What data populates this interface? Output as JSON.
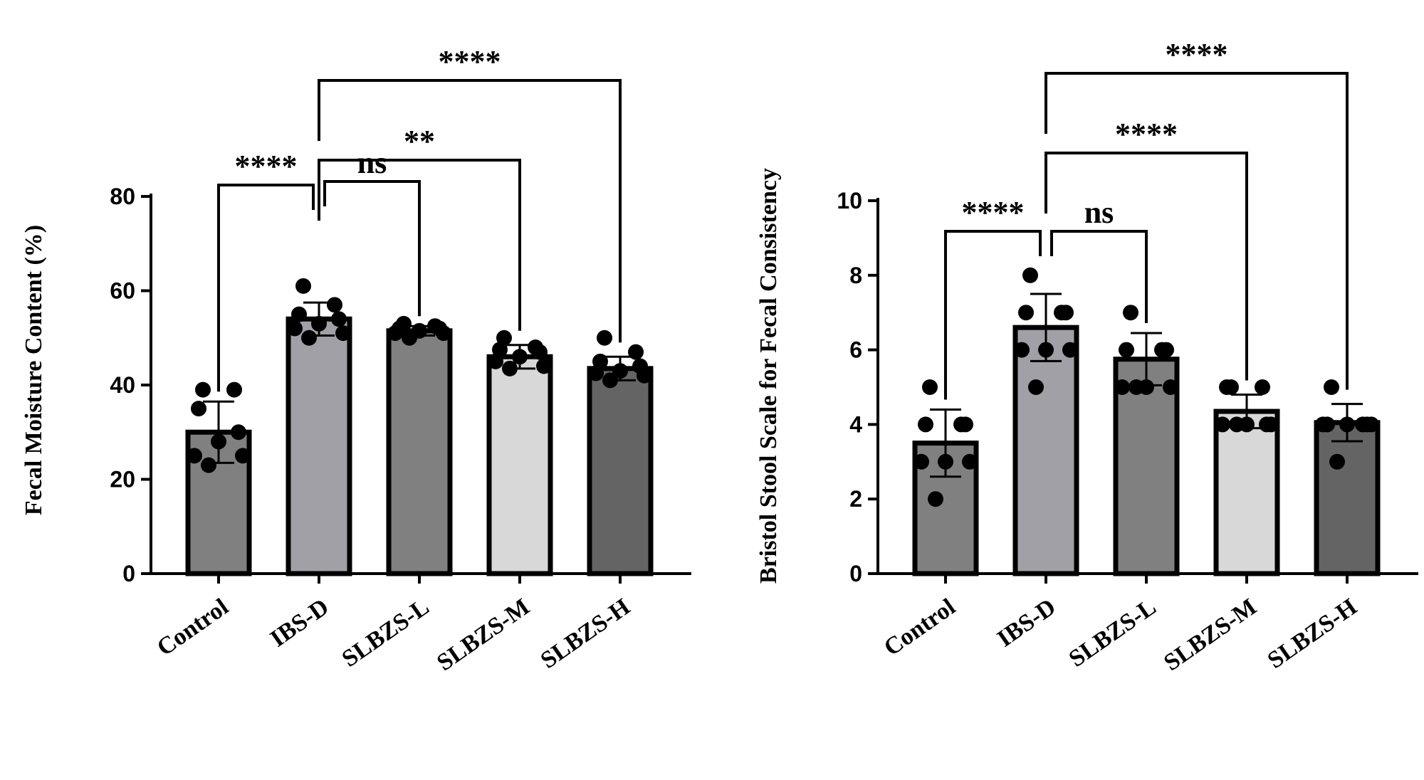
{
  "chart_data": [
    {
      "type": "bar",
      "ylabel": "Fecal Moisture Content (%)",
      "categories": [
        "Control",
        "IBS-D",
        "SLBZS-L",
        "SLBZS-M",
        "SLBZS-H"
      ],
      "values": [
        30,
        54,
        51.5,
        46,
        43.5
      ],
      "errors": [
        6.5,
        3.5,
        1,
        2.5,
        2.5
      ],
      "ylim": [
        0,
        80
      ],
      "yticks": [
        0,
        20,
        40,
        60,
        80
      ],
      "bar_colors": [
        "#808080",
        "#a0a0a6",
        "#808080",
        "#d8d8d8",
        "#646464"
      ],
      "points": [
        [
          39,
          39,
          35,
          30,
          28,
          25,
          25,
          23
        ],
        [
          61,
          57,
          55,
          54,
          53,
          52,
          51,
          50
        ],
        [
          53,
          52.5,
          52,
          52,
          51.5,
          51,
          51,
          50
        ],
        [
          50,
          48,
          47.5,
          47,
          46,
          45,
          44,
          43.5
        ],
        [
          50,
          47,
          45,
          44,
          43,
          42.5,
          42,
          41
        ]
      ],
      "comparisons": [
        {
          "from": 1,
          "to": 0,
          "label": "****"
        },
        {
          "from": 1,
          "to": 2,
          "label": "ns"
        },
        {
          "from": 1,
          "to": 3,
          "label": "**"
        },
        {
          "from": 1,
          "to": 4,
          "label": "****"
        }
      ]
    },
    {
      "type": "bar",
      "ylabel": "Bristol Stool Scale for Fecal Consistency",
      "categories": [
        "Control",
        "IBS-D",
        "SLBZS-L",
        "SLBZS-M",
        "SLBZS-H"
      ],
      "values": [
        3.5,
        6.6,
        5.75,
        4.35,
        4.05
      ],
      "errors": [
        0.9,
        0.9,
        0.7,
        0.45,
        0.5
      ],
      "ylim": [
        0,
        10
      ],
      "yticks": [
        0,
        2,
        4,
        6,
        8,
        10
      ],
      "bar_colors": [
        "#808080",
        "#a0a0a6",
        "#808080",
        "#d8d8d8",
        "#646464"
      ],
      "points": [
        [
          5,
          4,
          4,
          4,
          3,
          3,
          3,
          2
        ],
        [
          8,
          7,
          7,
          7,
          6,
          6,
          6,
          5
        ],
        [
          7,
          6,
          6,
          6,
          5,
          5,
          5,
          5
        ],
        [
          5,
          5,
          5,
          4,
          4,
          4,
          4,
          4
        ],
        [
          5,
          4,
          4,
          4,
          4,
          4,
          4,
          3
        ]
      ],
      "comparisons": [
        {
          "from": 1,
          "to": 0,
          "label": "****"
        },
        {
          "from": 1,
          "to": 2,
          "label": "ns"
        },
        {
          "from": 1,
          "to": 3,
          "label": "****"
        },
        {
          "from": 1,
          "to": 4,
          "label": "****"
        }
      ]
    }
  ]
}
